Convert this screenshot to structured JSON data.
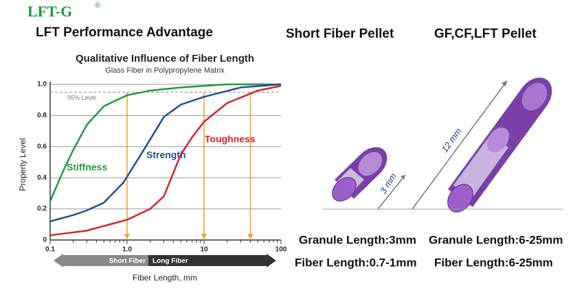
{
  "header": {
    "logo": "LFT-G",
    "registered": "®",
    "title": "LFT Performance Advantage"
  },
  "pellets": {
    "short_title": "Short Fiber Pellet",
    "long_title": "GF,CF,LFT Pellet",
    "short_dimension": "3 mm",
    "long_dimension": "12 mm",
    "short_granule": "Granule Length:3mm",
    "short_fiber": "Fiber Length:0.7-1mm",
    "long_granule": "Granule Length:6-25mm",
    "long_fiber": "Fiber Length:6-25mm"
  },
  "chart_data": {
    "type": "line",
    "title": "Qualitative Influence of Fiber Length",
    "subtitle": "Glass Fiber in Polypropylene Matrix",
    "x_label": "Fiber Length, mm",
    "y_label": "Property Level",
    "x_scale": "log",
    "xlim": [
      0.1,
      100
    ],
    "ylim": [
      0,
      1.0
    ],
    "xticks": [
      0.1,
      {
        "value": 1,
        "label": "1.0"
      },
      10,
      100
    ],
    "yticks": [
      0,
      0.2,
      0.4,
      0.6,
      0.8,
      {
        "value": 1,
        "label": "1.0"
      }
    ],
    "grid": true,
    "reference_line": {
      "value": 0.95,
      "label": "95% Level"
    },
    "markers_x": [
      1,
      10,
      40
    ],
    "range_bar": {
      "short": "Short Fiber",
      "long": "Long Fiber"
    },
    "series": [
      {
        "name": "Stiffness",
        "color": "#1f9a3f",
        "x": [
          0.1,
          0.15,
          0.2,
          0.3,
          0.5,
          1,
          2,
          5,
          10,
          20,
          50,
          100
        ],
        "values": [
          0.25,
          0.45,
          0.58,
          0.74,
          0.86,
          0.93,
          0.96,
          0.98,
          0.99,
          1.0,
          1.0,
          1.0
        ]
      },
      {
        "name": "Strength",
        "color": "#1f4f9a",
        "x": [
          0.1,
          0.2,
          0.3,
          0.5,
          0.9,
          1.7,
          3,
          5,
          10,
          30,
          100
        ],
        "values": [
          0.12,
          0.16,
          0.19,
          0.24,
          0.37,
          0.59,
          0.79,
          0.87,
          0.92,
          0.98,
          1.0
        ]
      },
      {
        "name": "Toughness",
        "color": "#d6222a",
        "x": [
          0.1,
          0.3,
          0.5,
          1,
          2,
          3,
          5,
          7,
          10,
          20,
          50,
          100
        ],
        "values": [
          0.03,
          0.06,
          0.09,
          0.13,
          0.2,
          0.28,
          0.55,
          0.66,
          0.76,
          0.88,
          0.96,
          0.99
        ]
      }
    ]
  }
}
